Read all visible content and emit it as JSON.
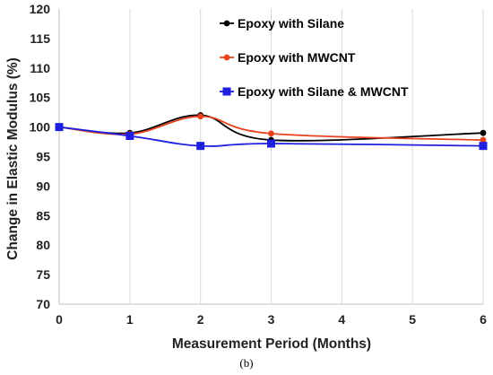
{
  "figure": {
    "caption": "(b)"
  },
  "chart_data": {
    "type": "line",
    "title": "",
    "xlabel": "Measurement Period (Months)",
    "ylabel": "Change in Elastic Modulus (%)",
    "xlim": [
      0,
      6
    ],
    "ylim": [
      70,
      120
    ],
    "xticks": [
      0,
      1,
      2,
      3,
      4,
      5,
      6
    ],
    "yticks": [
      70,
      75,
      80,
      85,
      90,
      95,
      100,
      105,
      110,
      115,
      120
    ],
    "grid": "vertical",
    "legend_position": "top-right",
    "smoothed": true,
    "series": [
      {
        "name": "Epoxy with Silane",
        "color": "#000000",
        "marker": "circle",
        "x": [
          0,
          1,
          2,
          3,
          6
        ],
        "y": [
          100,
          99,
          102,
          97.8,
          99
        ]
      },
      {
        "name": "Epoxy with MWCNT",
        "color": "#e8431c",
        "marker": "circle",
        "x": [
          0,
          1,
          2,
          3,
          6
        ],
        "y": [
          100,
          98.8,
          101.8,
          98.9,
          97.8
        ]
      },
      {
        "name": "Epoxy with Silane & MWCNT",
        "color": "#1f1fe0",
        "marker": "square",
        "x": [
          0,
          1,
          2,
          3,
          6
        ],
        "y": [
          100,
          98.5,
          96.8,
          97.2,
          96.8
        ]
      }
    ]
  }
}
